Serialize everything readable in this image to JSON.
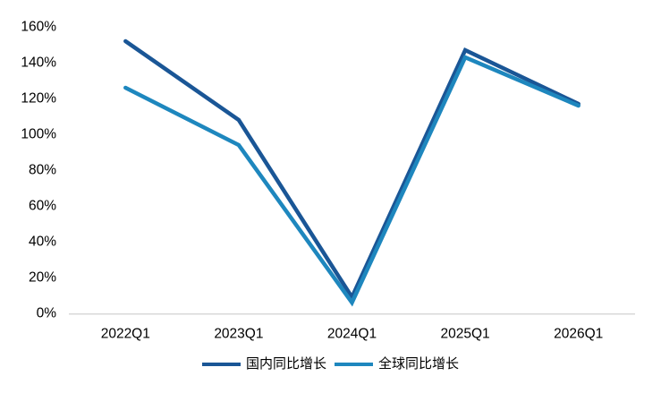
{
  "chart_data": {
    "type": "line",
    "title": "",
    "categories": [
      "2022Q1",
      "2023Q1",
      "2024Q1",
      "2025Q1",
      "2026Q1"
    ],
    "series": [
      {
        "name": "国内同比增长",
        "color": "#1A5696",
        "values": [
          152,
          108,
          9,
          147,
          117
        ]
      },
      {
        "name": "全球同比增长",
        "color": "#1E87BE",
        "values": [
          126,
          94,
          6,
          143,
          116
        ]
      }
    ],
    "xlabel": "",
    "ylabel": "",
    "y_axis": {
      "min": 0,
      "max": 160,
      "step": 20,
      "tick_labels": [
        "0%",
        "20%",
        "40%",
        "60%",
        "80%",
        "100%",
        "120%",
        "140%",
        "160%"
      ]
    },
    "grid": "off",
    "legend_position": "bottom"
  },
  "style": {
    "axis_line_color": "#D9D9D9",
    "tick_text_color": "#000000",
    "background": "#FFFFFF",
    "line_width": 4.5
  }
}
